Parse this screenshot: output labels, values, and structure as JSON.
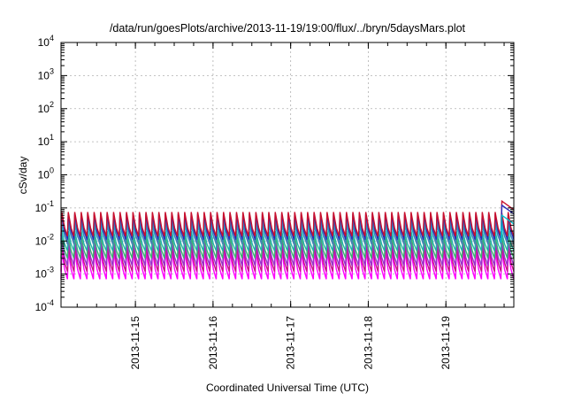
{
  "chart_data": {
    "type": "line",
    "title": "/data/run/goesPlots/archive/2013-11-19/19:00/flux/../bryn/5daysMars.plot",
    "xlabel": "Coordinated Universal Time (UTC)",
    "ylabel": "cSv/day",
    "y_scale": "log",
    "ylim": [
      0.0001,
      10000
    ],
    "xlim": [
      "2013-11-14 01:00",
      "2013-11-19 21:00"
    ],
    "y_ticks": [
      {
        "base": "10",
        "exp": "4",
        "value": 10000
      },
      {
        "base": "10",
        "exp": "3",
        "value": 1000
      },
      {
        "base": "10",
        "exp": "2",
        "value": 100
      },
      {
        "base": "10",
        "exp": "1",
        "value": 10
      },
      {
        "base": "10",
        "exp": "0",
        "value": 1
      },
      {
        "base": "10",
        "exp": "-1",
        "value": 0.1
      },
      {
        "base": "10",
        "exp": "-2",
        "value": 0.01
      },
      {
        "base": "10",
        "exp": "-3",
        "value": 0.001
      },
      {
        "base": "10",
        "exp": "-4",
        "value": 0.0001
      }
    ],
    "x_ticks": [
      {
        "label": "2013-11-15",
        "t": "2013-11-15 00:00"
      },
      {
        "label": "2013-11-16",
        "t": "2013-11-16 00:00"
      },
      {
        "label": "2013-11-17",
        "t": "2013-11-17 00:00"
      },
      {
        "label": "2013-11-18",
        "t": "2013-11-18 00:00"
      },
      {
        "label": "2013-11-19",
        "t": "2013-11-19 00:00"
      }
    ],
    "grid": true,
    "sawtooth_period_hours": 2,
    "series": [
      {
        "color": "#c8102e",
        "peak": 0.075,
        "trough": 0.014
      },
      {
        "color": "#2a2ab8",
        "peak": 0.065,
        "trough": 0.011
      },
      {
        "color": "#4682b4",
        "peak": 0.045,
        "trough": 0.008
      },
      {
        "color": "#00c0d0",
        "peak": 0.03,
        "trough": 0.009
      },
      {
        "color": "#20b2aa",
        "peak": 0.02,
        "trough": 0.005
      },
      {
        "color": "#3cb371",
        "peak": 0.014,
        "trough": 0.003
      },
      {
        "color": "#9932cc",
        "peak": 0.01,
        "trough": 0.0018
      },
      {
        "color": "#c71585",
        "peak": 0.007,
        "trough": 0.0012
      },
      {
        "color": "#ff00ff",
        "peak": 0.005,
        "trough": 0.0007
      }
    ],
    "final_flare": [
      {
        "color": "#c8102e",
        "peak": 0.16
      },
      {
        "color": "#2a2ab8",
        "peak": 0.12
      },
      {
        "color": "#00c0d0",
        "peak": 0.06
      }
    ]
  }
}
